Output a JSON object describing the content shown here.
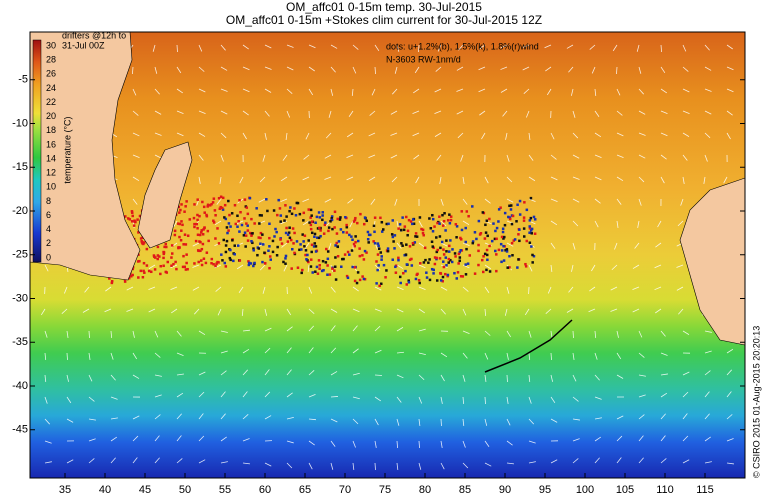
{
  "header": {
    "title": "OM_affc01 0-15m temp. 30-Jul-2015",
    "subtitle": "OM_affc01 0-15m +Stokes clim current for 30-Jul-2015 12Z"
  },
  "legend": {
    "drifters_line1": "drifters @12h to",
    "drifters_line2": "31-Jul 00Z",
    "colorbar_label": "temperature (°C)",
    "colorbar_ticks": [
      30,
      28,
      26,
      24,
      22,
      20,
      18,
      16,
      14,
      12,
      10,
      8,
      6,
      4,
      2,
      0
    ]
  },
  "annotations": {
    "dots": "dots: u+1.2%(b), 1.5%(k), 1.8%(r)wind",
    "note": "N-3603 RW-1nm/d",
    "credit": "© CSIRO 2015   01-Aug-2015 20:20:13"
  },
  "axes": {
    "lon_ticks": [
      35,
      40,
      45,
      50,
      55,
      60,
      65,
      70,
      75,
      80,
      85,
      90,
      95,
      100,
      105,
      110,
      115
    ],
    "lat_ticks": [
      -5,
      -10,
      -15,
      -20,
      -25,
      -30,
      -35,
      -40,
      -45
    ]
  }
}
